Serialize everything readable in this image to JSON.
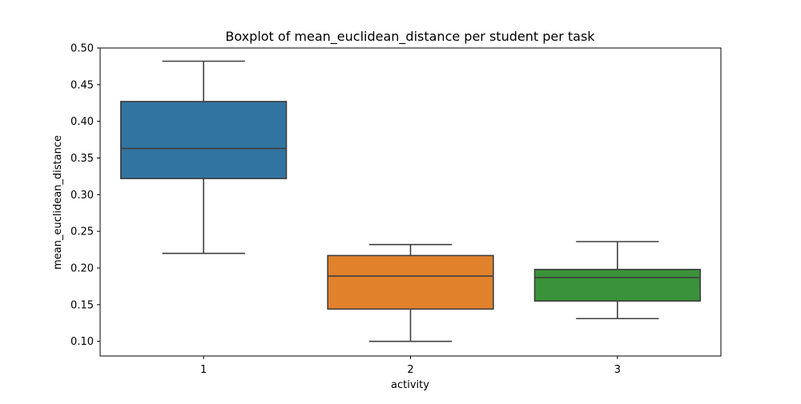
{
  "chart_data": {
    "type": "box",
    "title": "Boxplot of mean_euclidean_distance per student per task",
    "xlabel": "activity",
    "ylabel": "mean_euclidean_distance",
    "ylim": [
      0.08,
      0.5
    ],
    "yticks": [
      "0.10",
      "0.15",
      "0.20",
      "0.25",
      "0.30",
      "0.35",
      "0.40",
      "0.45",
      "0.50"
    ],
    "grid": false,
    "categories": [
      "1",
      "2",
      "3"
    ],
    "boxes": [
      {
        "category": "1",
        "whisker_low": 0.22,
        "q1": 0.322,
        "median": 0.363,
        "q3": 0.427,
        "whisker_high": 0.482,
        "color": "#3274a1"
      },
      {
        "category": "2",
        "whisker_low": 0.1,
        "q1": 0.144,
        "median": 0.189,
        "q3": 0.217,
        "whisker_high": 0.232,
        "color": "#e1812c"
      },
      {
        "category": "3",
        "whisker_low": 0.131,
        "q1": 0.155,
        "median": 0.187,
        "q3": 0.198,
        "whisker_high": 0.236,
        "color": "#3a923a"
      }
    ]
  }
}
